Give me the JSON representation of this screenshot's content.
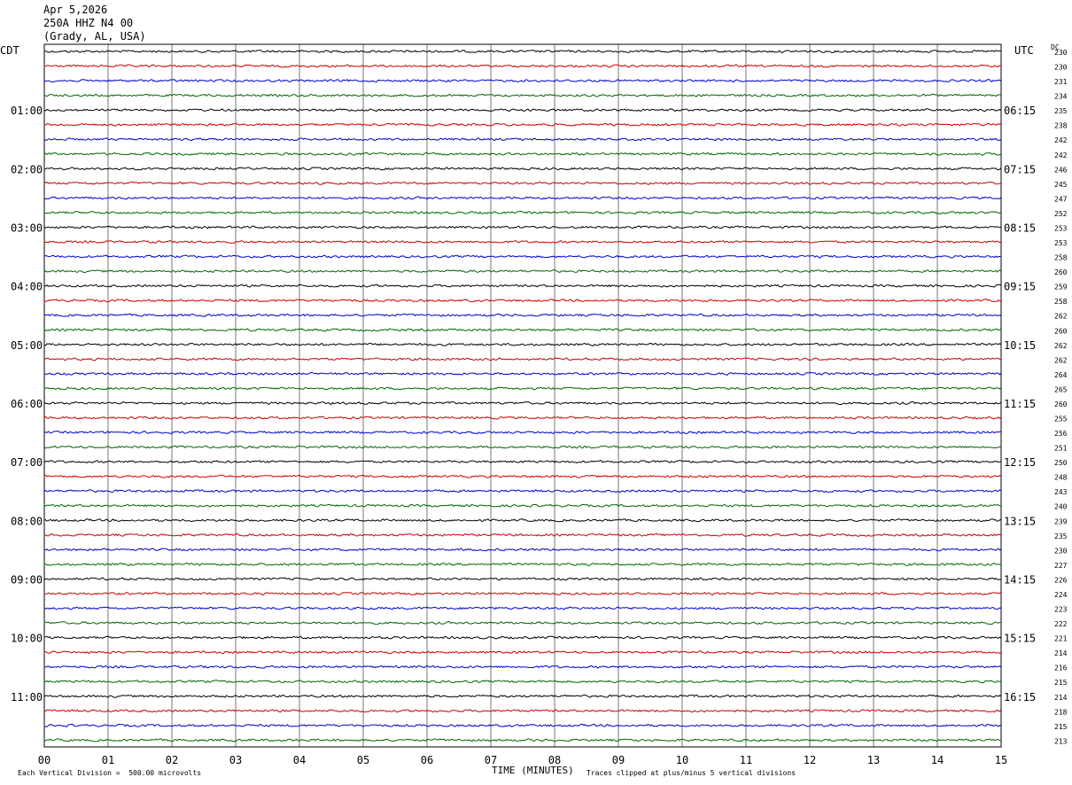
{
  "header": {
    "date": "Apr 5,2026",
    "station": "250A HHZ N4 00",
    "location": "(Grady, AL, USA)"
  },
  "left_tz": "CDT",
  "right_tz": "UTC",
  "dc_label": "DC",
  "footer": {
    "scale_note": "Each Vertical Division =  500.00 microvolts",
    "x_title": "TIME (MINUTES)",
    "clip_note": "Traces clipped at plus/minus 5 vertical divisions"
  },
  "colors": {
    "trace": [
      "#000000",
      "#cc0000",
      "#0000cc",
      "#006600"
    ],
    "grid": "#000000"
  },
  "chart_data": {
    "type": "line",
    "description_free": true,
    "x_ticks": [
      "00",
      "01",
      "02",
      "03",
      "04",
      "05",
      "06",
      "07",
      "08",
      "09",
      "10",
      "11",
      "12",
      "13",
      "14",
      "15"
    ],
    "xlim": [
      0,
      15
    ],
    "left_time_labels": [
      "01:00",
      "02:00",
      "03:00",
      "04:00",
      "05:00",
      "06:00",
      "07:00",
      "08:00",
      "09:00",
      "10:00",
      "11:00"
    ],
    "right_time_labels": [
      "06:15",
      "07:15",
      "08:15",
      "09:15",
      "10:15",
      "11:15",
      "12:15",
      "13:15",
      "14:15",
      "15:15",
      "16:15"
    ],
    "dc_offsets": [
      230,
      230,
      231,
      234,
      235,
      238,
      242,
      242,
      246,
      245,
      247,
      252,
      253,
      253,
      258,
      260,
      259,
      258,
      262,
      260,
      262,
      262,
      264,
      265,
      260,
      255,
      256,
      251,
      250,
      248,
      243,
      240,
      239,
      235,
      230,
      227,
      226,
      224,
      223,
      222,
      221,
      214,
      216,
      215,
      214,
      218,
      215,
      213
    ],
    "traces_per_hour": 4,
    "trace_count": 48
  }
}
